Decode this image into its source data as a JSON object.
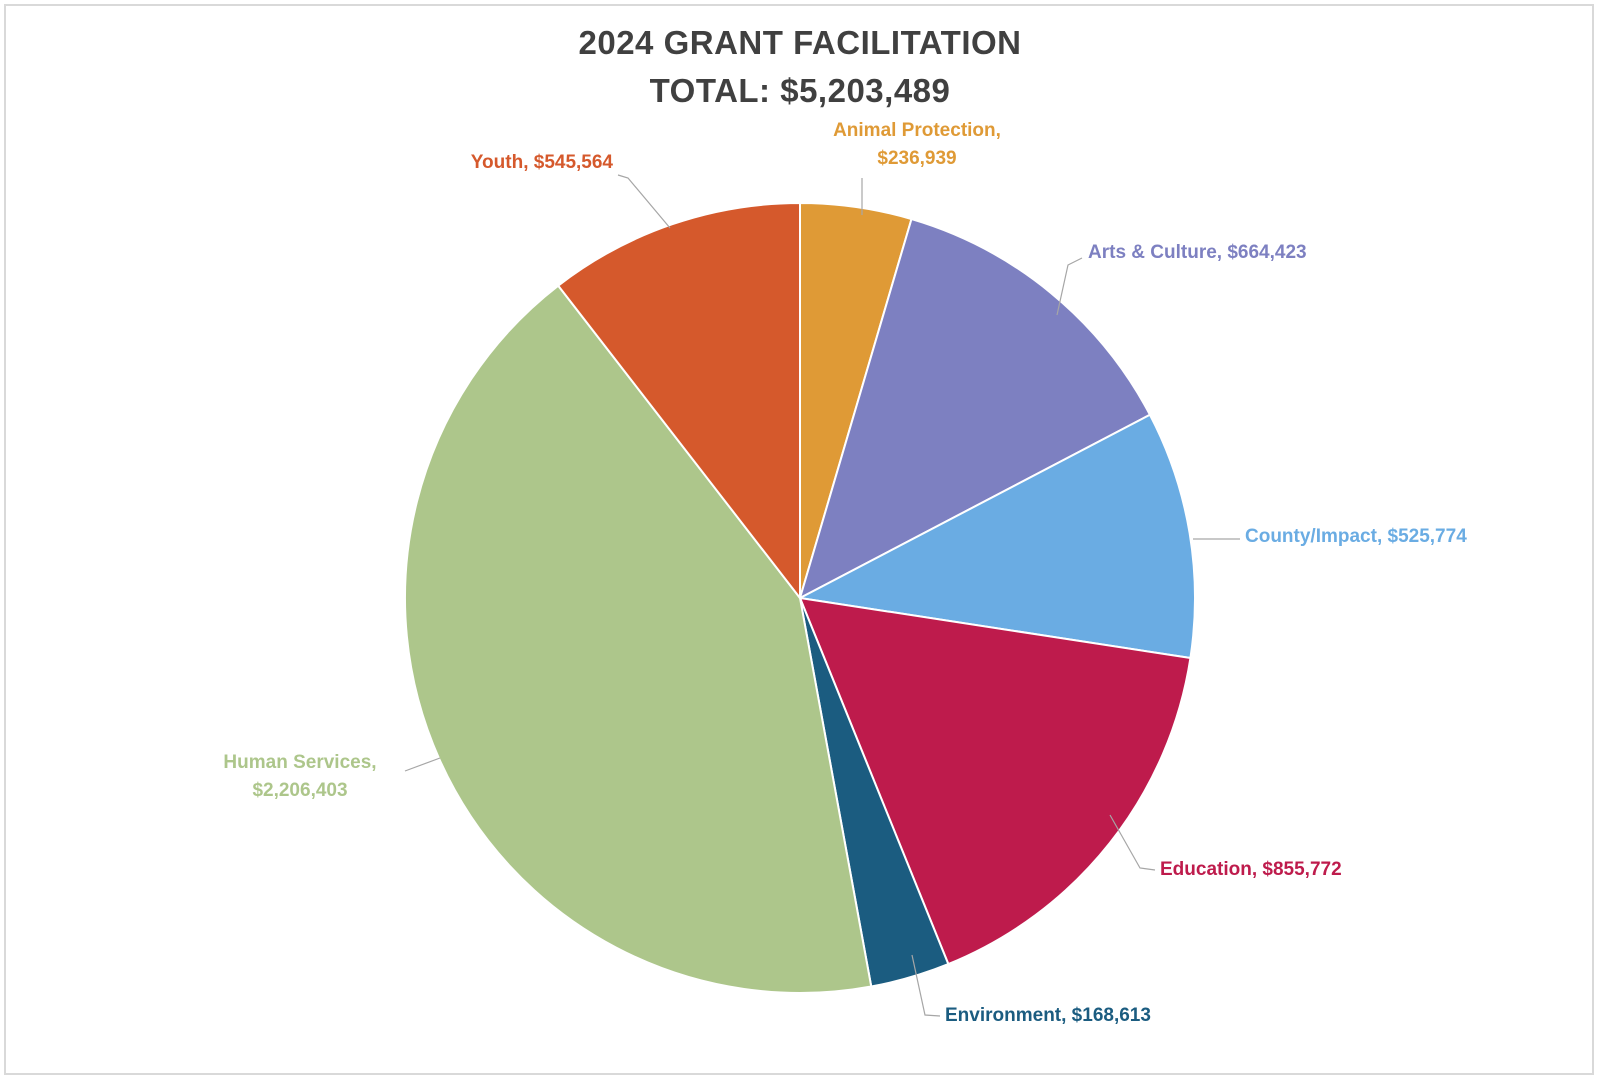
{
  "chart_data": {
    "type": "pie",
    "title": "2024 GRANT FACILITATION",
    "subtitle": "TOTAL: $5,203,489",
    "slices": [
      {
        "category": "Animal Protection",
        "value": 236939,
        "value_label": "$236,939",
        "color": "#df9a36"
      },
      {
        "category": "Arts & Culture",
        "value": 664423,
        "value_label": "$664,423",
        "color": "#7d80c1"
      },
      {
        "category": "County/Impact",
        "value": 525774,
        "value_label": "$525,774",
        "color": "#6aace3"
      },
      {
        "category": "Education",
        "value": 855772,
        "value_label": "$855,772",
        "color": "#be1b4c"
      },
      {
        "category": "Environment",
        "value": 168613,
        "value_label": "$168,613",
        "color": "#1b5c80"
      },
      {
        "category": "Human Services",
        "value": 2206403,
        "value_label": "$2,206,403",
        "color": "#adc68b"
      },
      {
        "category": "Youth",
        "value": 545564,
        "value_label": "$545,564",
        "color": "#d5592c"
      }
    ]
  }
}
